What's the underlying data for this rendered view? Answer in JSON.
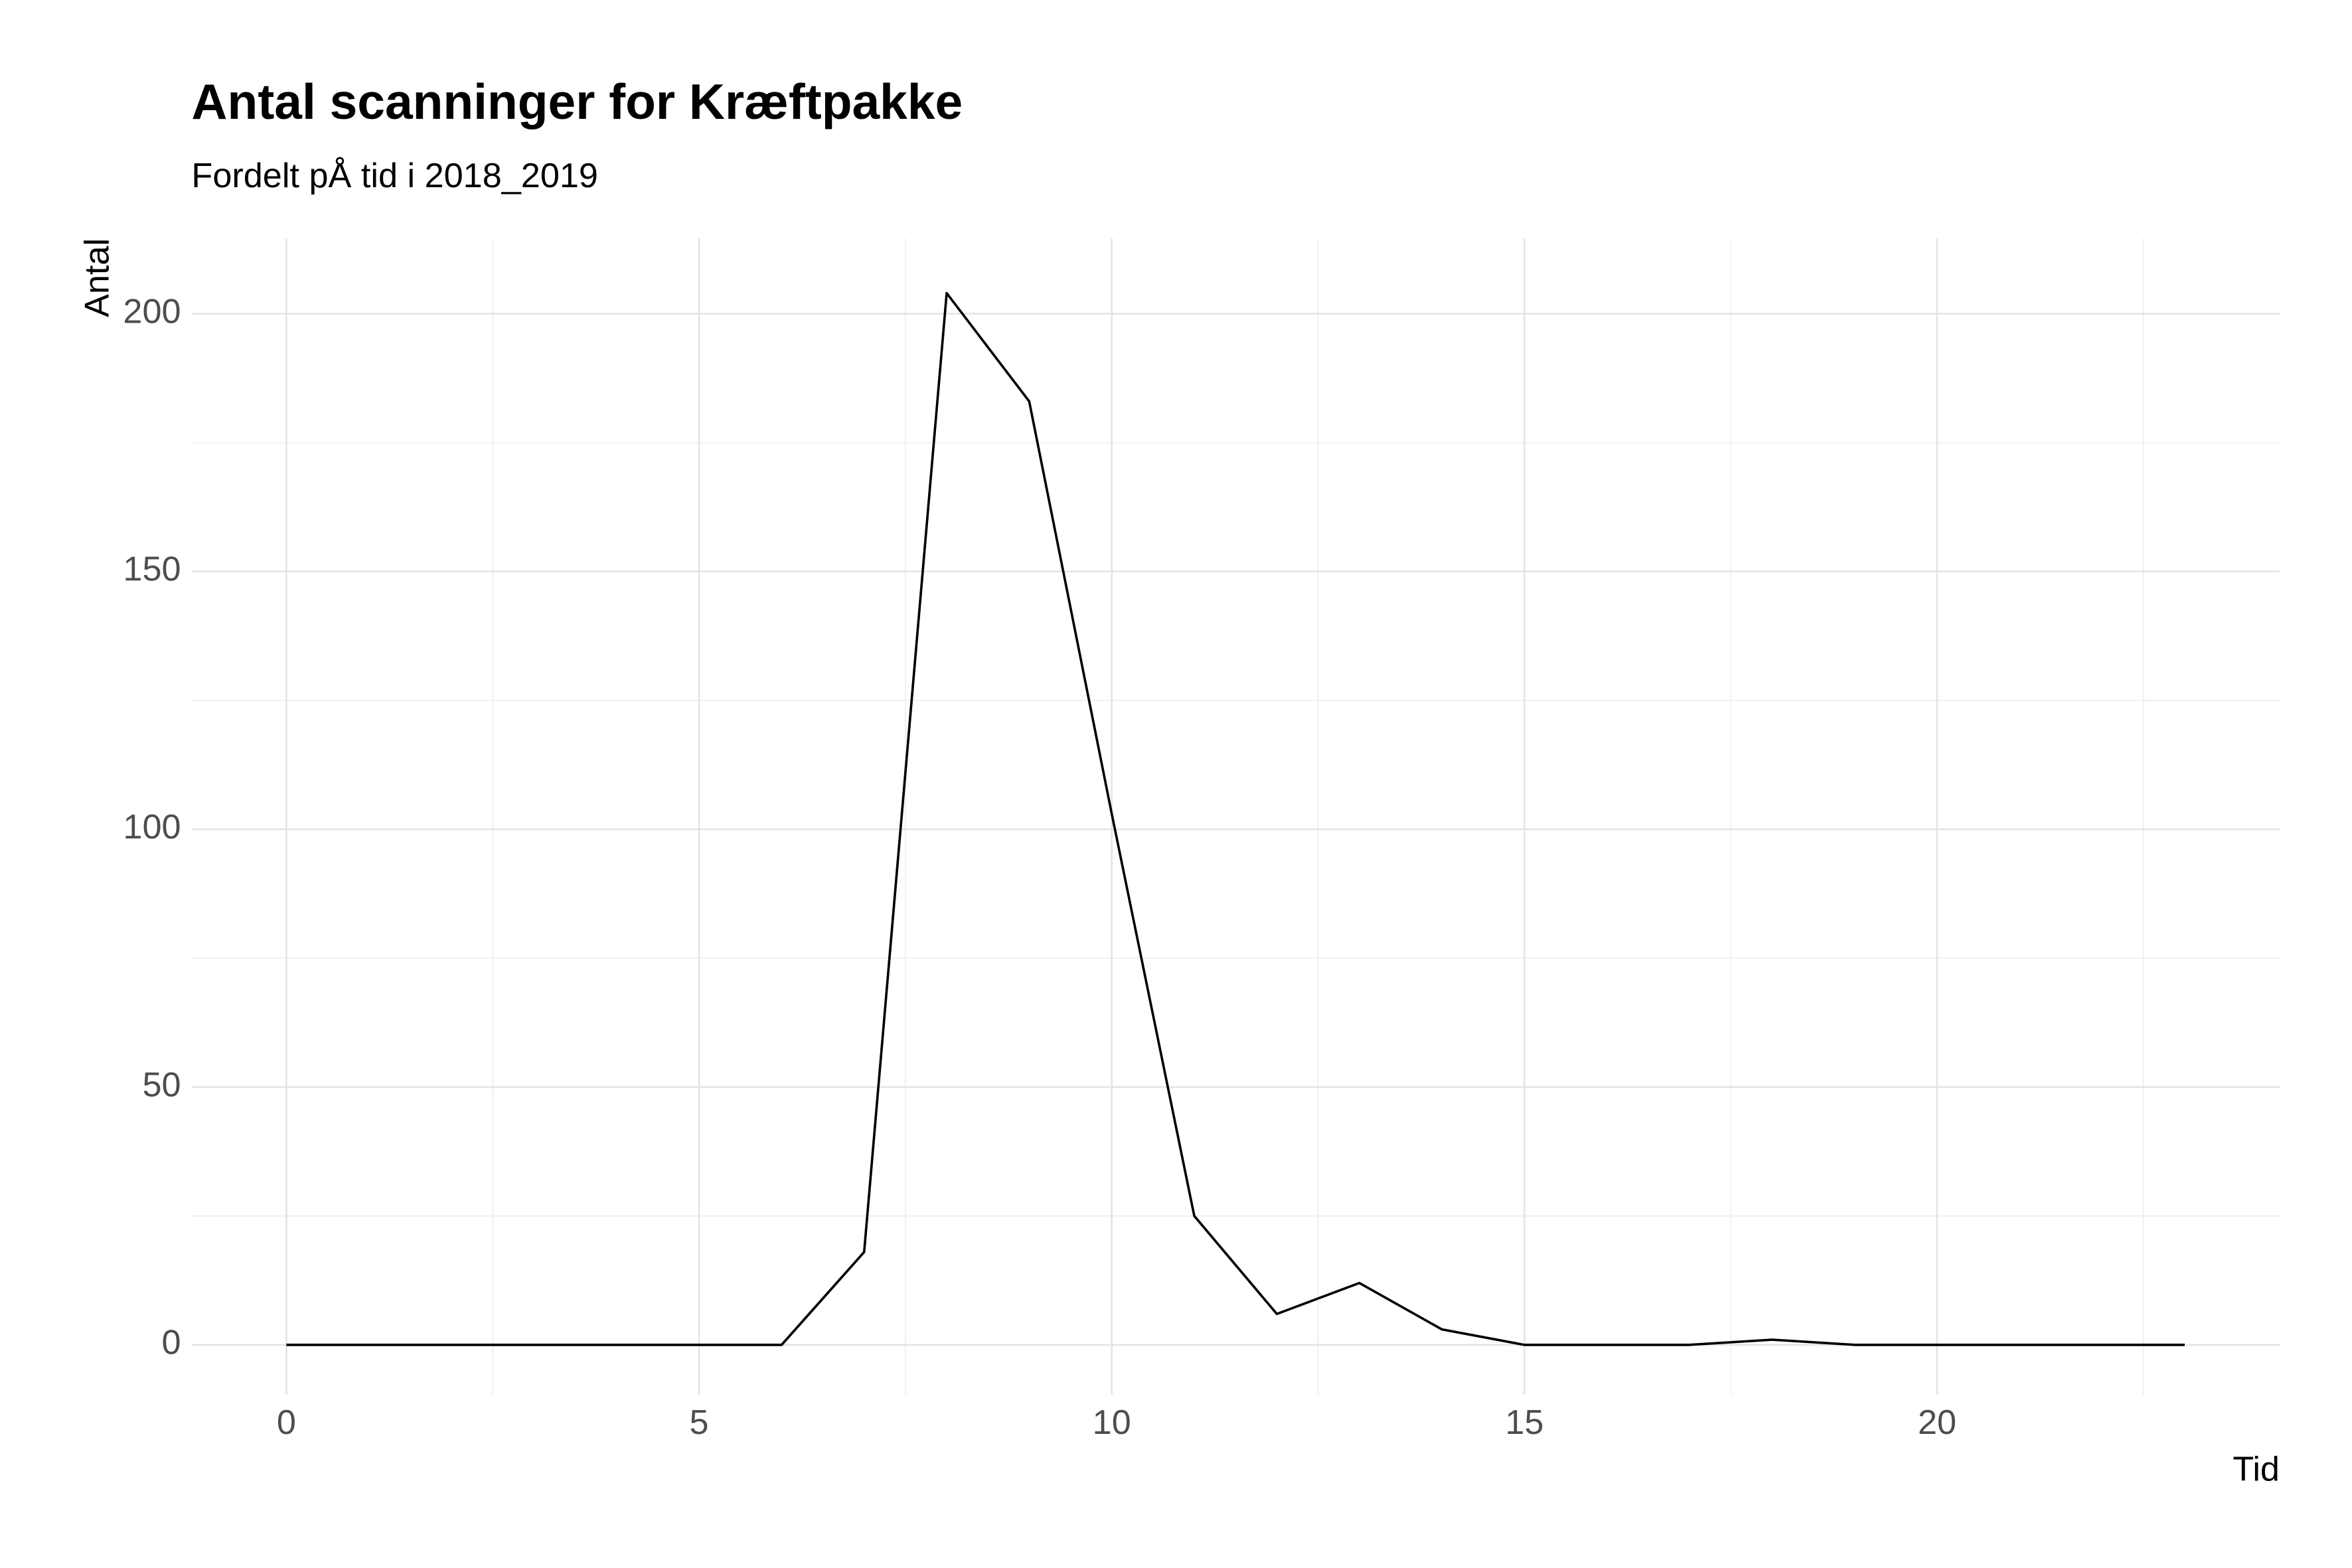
{
  "chart_data": {
    "type": "line",
    "title": "Antal scanninger for Kræftpakke",
    "subtitle": "Fordelt pÅ tid i 2018_2019",
    "x_label": "Tid",
    "y_label": "Antal",
    "x": [
      0,
      1,
      2,
      3,
      4,
      5,
      6,
      7,
      8,
      9,
      10,
      11,
      12,
      13,
      14,
      15,
      16,
      17,
      18,
      19,
      20,
      21,
      22,
      23
    ],
    "series": [
      {
        "color": "#000000",
        "values": [
          0,
          0,
          0,
          0,
          0,
          0,
          0,
          18,
          204,
          183,
          103,
          25,
          6,
          12,
          3,
          0,
          0,
          0,
          1,
          0,
          0,
          0,
          0,
          0
        ]
      }
    ],
    "xlim": [
      -1.15,
      24.15
    ],
    "ylim": [
      -9.65,
      214.65
    ],
    "xticks": [
      0,
      5,
      10,
      15,
      20
    ],
    "yticks": [
      0,
      50,
      100,
      150,
      200
    ],
    "x_minor_ticks": [
      2.5,
      7.5,
      12.5,
      17.5,
      22.5
    ],
    "y_minor_ticks": [
      25,
      75,
      125,
      175
    ],
    "grid": true
  }
}
